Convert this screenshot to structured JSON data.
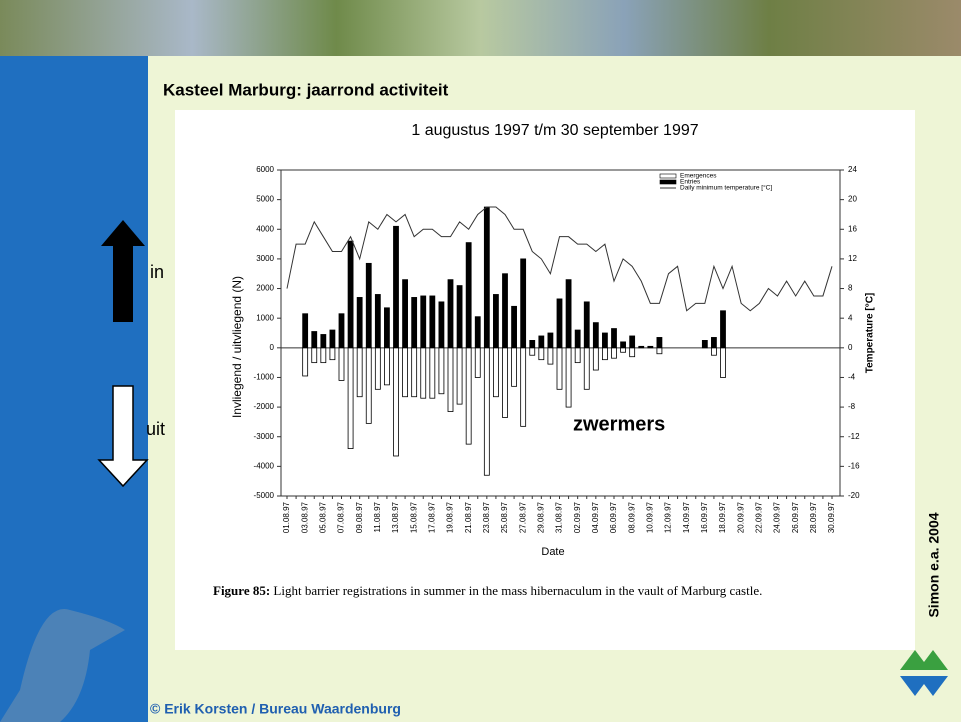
{
  "slide": {
    "title": "Kasteel Marburg: jaarrond activiteit",
    "in_label": "in",
    "out_label": "uit",
    "credit": "Simon e.a. 2004",
    "caption_label": "Figure 85:",
    "caption_text": "Light barrier registrations in summer in the mass hibernaculum in the vault of Marburg castle.",
    "footer": "© Erik Korsten / Bureau Waardenburg"
  },
  "chart_data": {
    "type": "bar",
    "subtitle": "1 augustus 1997 t/m 30 september 1997",
    "annotation": "zwermers",
    "y_label": "Invliegend / uitvliegend (N)",
    "y2_label": "Temperature [°C]",
    "x_label": "Date",
    "categories": [
      "01.08.97",
      null,
      "03.08.97",
      null,
      "05.08.97",
      null,
      "07.08.97",
      null,
      "09.08.97",
      null,
      "11.08.97",
      null,
      "13.08.97",
      null,
      "15.08.97",
      null,
      "17.08.97",
      null,
      "19.08.97",
      null,
      "21.08.97",
      null,
      "23.08.97",
      null,
      "25.08.97",
      null,
      "27.08.97",
      null,
      "29.08.97",
      null,
      "31.08.97",
      null,
      "02.09.97",
      null,
      "04.09.97",
      null,
      "06.09.97",
      null,
      "08.09.97",
      null,
      "10.09.97",
      null,
      "12.09.97",
      null,
      "14.09.97",
      null,
      "16.09.97",
      null,
      "18.09.97",
      null,
      "20.09.97",
      null,
      "22.09.97",
      null,
      "24.09.97",
      null,
      "26.09.97",
      null,
      "28.09.97",
      null,
      "30.09.97"
    ],
    "series": [
      {
        "name": "Emergences",
        "type": "bar",
        "color": "#ffffff",
        "values": [
          0,
          0,
          -950,
          -500,
          -500,
          -400,
          -1100,
          -3400,
          -1650,
          -2550,
          -1400,
          -1250,
          -3650,
          -1650,
          -1650,
          -1700,
          -1700,
          -1550,
          -2150,
          -1900,
          -3250,
          -1000,
          -4300,
          -1650,
          -2350,
          -1300,
          -2650,
          -250,
          -400,
          -550,
          -1400,
          -2000,
          -500,
          -1400,
          -750,
          -400,
          -350,
          -150,
          -300,
          0,
          0,
          -200,
          0,
          0,
          0,
          0,
          0,
          -250,
          -1000,
          0,
          0,
          0,
          0,
          0,
          0,
          0,
          0,
          0,
          0,
          0,
          0
        ]
      },
      {
        "name": "Entries",
        "type": "bar",
        "color": "#000000",
        "values": [
          0,
          0,
          1150,
          550,
          450,
          600,
          1150,
          3600,
          1700,
          2850,
          1800,
          1350,
          4100,
          2300,
          1700,
          1750,
          1750,
          1550,
          2300,
          2100,
          3550,
          1050,
          4750,
          1800,
          2500,
          1400,
          3000,
          250,
          400,
          500,
          1650,
          2300,
          600,
          1550,
          850,
          500,
          650,
          200,
          400,
          50,
          50,
          350,
          0,
          0,
          0,
          0,
          250,
          350,
          1250,
          0,
          0,
          0,
          0,
          0,
          0,
          0,
          0,
          0,
          0,
          0,
          0
        ]
      },
      {
        "name": "Daily minimum temperature [°C]",
        "type": "line",
        "axis": "y2",
        "color": "#333333",
        "values": [
          8,
          14,
          14,
          17,
          15,
          13,
          13,
          15,
          12,
          17,
          16,
          18,
          17,
          18,
          15,
          16,
          16,
          15,
          15,
          17,
          16,
          18,
          19,
          19,
          18,
          16,
          16,
          13,
          12,
          10,
          15,
          15,
          14,
          14,
          13,
          14,
          9,
          12,
          11,
          9,
          6,
          6,
          10,
          11,
          5,
          6,
          6,
          11,
          8,
          11,
          6,
          5,
          6,
          8,
          7,
          9,
          7,
          9,
          7,
          7,
          11
        ]
      }
    ],
    "ylim": [
      -5000,
      6000
    ],
    "yticks": [
      -5000,
      -4000,
      -3000,
      -2000,
      -1000,
      0,
      1000,
      2000,
      3000,
      4000,
      5000,
      6000
    ],
    "y2lim": [
      -20,
      24
    ],
    "y2ticks": [
      -20,
      -16,
      -12,
      -8,
      -4,
      0,
      4,
      8,
      12,
      16,
      20,
      24
    ]
  }
}
